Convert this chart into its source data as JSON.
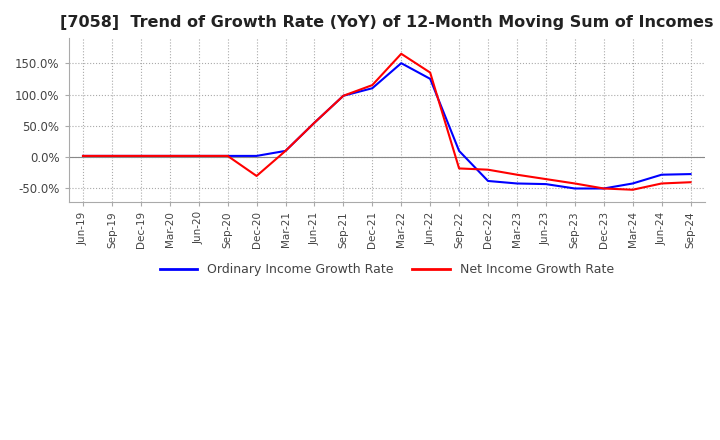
{
  "title": "[7058]  Trend of Growth Rate (YoY) of 12-Month Moving Sum of Incomes",
  "title_fontsize": 11.5,
  "ylim": [
    -0.72,
    1.9
  ],
  "yticks": [
    -0.5,
    0.0,
    0.5,
    1.0,
    1.5
  ],
  "ytick_labels": [
    "-50.0%",
    "0.0%",
    "50.0%",
    "100.0%",
    "150.0%"
  ],
  "background_color": "#ffffff",
  "grid_color": "#aaaaaa",
  "ordinary_color": "#0000ff",
  "net_color": "#ff0000",
  "legend_labels": [
    "Ordinary Income Growth Rate",
    "Net Income Growth Rate"
  ],
  "dates": [
    "Jun-19",
    "Sep-19",
    "Dec-19",
    "Mar-20",
    "Jun-20",
    "Sep-20",
    "Dec-20",
    "Mar-21",
    "Jun-21",
    "Sep-21",
    "Dec-21",
    "Mar-22",
    "Jun-22",
    "Sep-22",
    "Dec-22",
    "Mar-23",
    "Jun-23",
    "Sep-23",
    "Dec-23",
    "Mar-24",
    "Jun-24",
    "Sep-24"
  ],
  "ordinary_values": [
    0.02,
    0.02,
    0.02,
    0.02,
    0.02,
    0.02,
    0.02,
    0.1,
    0.55,
    0.98,
    1.1,
    1.5,
    1.25,
    0.1,
    -0.38,
    -0.42,
    -0.43,
    -0.5,
    -0.5,
    -0.42,
    -0.28,
    -0.27
  ],
  "net_values": [
    0.02,
    0.02,
    0.02,
    0.02,
    0.02,
    0.02,
    -0.3,
    0.1,
    0.55,
    0.98,
    1.15,
    1.65,
    1.35,
    -0.18,
    -0.2,
    -0.28,
    -0.35,
    -0.42,
    -0.5,
    -0.52,
    -0.42,
    -0.4
  ]
}
